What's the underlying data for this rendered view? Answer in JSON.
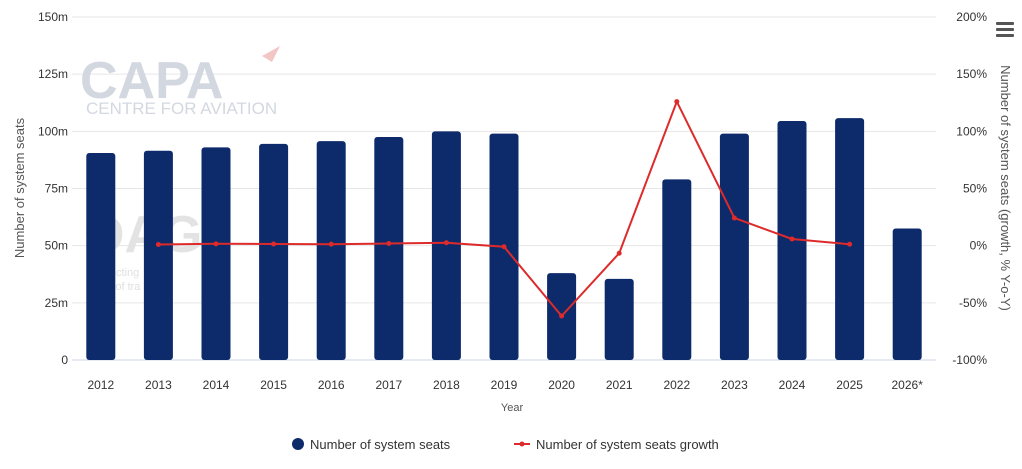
{
  "watermark": {
    "brand": "CAPA",
    "brand_sub": "CENTRE FOR AVIATION",
    "partner": "OAG",
    "partner_sub_1": "connecting",
    "partner_sub_2": "world of tra"
  },
  "colors": {
    "bars": "#0d2a6b",
    "line": "#dd2b2b",
    "grid": "#e6e6e6"
  },
  "icons": {
    "menu": "hamburger-menu-icon"
  },
  "chart_data": {
    "type": "bar",
    "title": "",
    "xlabel": "Year",
    "ylabel": "Number of system seats",
    "y2label": "Number of system seats (growth, % Y-o-Y)",
    "categories": [
      "2012",
      "2013",
      "2014",
      "2015",
      "2016",
      "2017",
      "2018",
      "2019",
      "2020",
      "2021",
      "2022",
      "2023",
      "2024",
      "2025",
      "2026*"
    ],
    "y_ticks": [
      "0",
      "25m",
      "50m",
      "75m",
      "100m",
      "125m",
      "150m"
    ],
    "y2_ticks": [
      "-100%",
      "-50%",
      "0%",
      "50%",
      "100%",
      "150%",
      "200%"
    ],
    "ylim": [
      0,
      150
    ],
    "y2lim": [
      -100,
      200
    ],
    "grid": true,
    "legend_position": "bottom-center",
    "series": [
      {
        "name": "Number of system seats",
        "type": "bar",
        "axis": "left",
        "values": [
          90.5,
          91.5,
          93.0,
          94.5,
          95.7,
          97.5,
          100.0,
          99.0,
          38.0,
          35.5,
          79.0,
          99.0,
          104.5,
          105.8,
          57.5
        ]
      },
      {
        "name": "Number of system seats growth",
        "type": "line",
        "axis": "right",
        "values": [
          null,
          1.0,
          1.6,
          1.5,
          1.3,
          1.9,
          2.6,
          -0.9,
          -61.5,
          -6.6,
          126.0,
          24.2,
          5.8,
          1.2,
          null
        ]
      }
    ]
  }
}
